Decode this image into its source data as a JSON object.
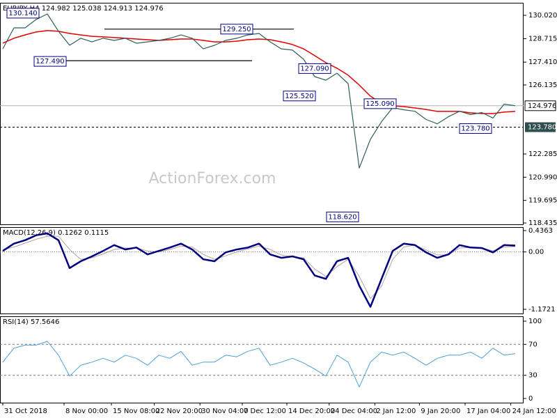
{
  "chart_data": [
    {
      "type": "line",
      "title": "EURJPY,H4 124.982 125.038 124.913 124.976",
      "watermark": "ActionForex.com",
      "x": [
        0,
        1,
        2,
        3,
        4,
        5,
        6,
        7,
        8,
        9,
        10,
        11,
        12,
        13,
        14,
        15,
        16,
        17,
        18,
        19,
        20,
        21,
        22,
        23,
        24,
        25,
        26,
        27,
        28,
        29,
        30,
        31,
        32,
        33,
        34,
        35,
        36,
        37,
        38,
        39,
        40,
        41,
        42,
        43,
        44,
        45,
        46
      ],
      "xlim": [
        -0.25,
        46.75
      ],
      "xticks": [
        {
          "value": 0,
          "label": "31 Oct 2018"
        },
        {
          "value": 5.5,
          "label": "8 Nov 00:00"
        },
        {
          "value": 9.75,
          "label": "15 Nov 08:00"
        },
        {
          "value": 13.6,
          "label": "22 Nov 20:00"
        },
        {
          "value": 17.7,
          "label": "30 Nov 04:00"
        },
        {
          "value": 21.5,
          "label": "7 Dec 12:00"
        },
        {
          "value": 25.5,
          "label": "14 Dec 20:00"
        },
        {
          "value": 29.3,
          "label": "24 Dec 04:00"
        },
        {
          "value": 33.4,
          "label": "2 Jan 12:00"
        },
        {
          "value": 37.4,
          "label": "9 Jan 20:00"
        },
        {
          "value": 41.5,
          "label": "17 Jan 04:00"
        },
        {
          "value": 45.6,
          "label": "24 Jan 12:00"
        }
      ],
      "ylim": [
        118.36,
        130.72
      ],
      "yticks": [
        {
          "value": 130.02,
          "label": "130.020"
        },
        128.715,
        {
          "value": 127.41,
          "label": "127.410"
        },
        126.135,
        122.285,
        {
          "value": 120.99,
          "label": "120.990"
        },
        119.695,
        118.435
      ],
      "series": [
        {
          "color": "#2f5f5a",
          "values": [
            128.15,
            129.32,
            129.32,
            129.79,
            130.1,
            129.13,
            128.35,
            128.74,
            128.54,
            128.74,
            128.62,
            128.74,
            128.46,
            128.54,
            128.62,
            128.74,
            128.93,
            128.74,
            128.15,
            128.35,
            128.62,
            128.74,
            128.93,
            129.01,
            128.54,
            128.15,
            128.08,
            127.57,
            126.6,
            126.4,
            126.79,
            126.21,
            121.5,
            123.1,
            124.09,
            124.87,
            124.75,
            124.67,
            124.21,
            123.97,
            124.36,
            124.67,
            124.48,
            124.6,
            124.29,
            125.06,
            124.98
          ]
        },
        {
          "color": "#e00000",
          "values": [
            128.47,
            128.74,
            128.93,
            129.09,
            129.17,
            129.13,
            129.01,
            128.93,
            128.85,
            128.82,
            128.78,
            128.74,
            128.7,
            128.66,
            128.62,
            128.66,
            128.7,
            128.7,
            128.62,
            128.54,
            128.54,
            128.58,
            128.66,
            128.7,
            128.66,
            128.54,
            128.39,
            128.15,
            127.77,
            127.38,
            127.07,
            126.68,
            126.13,
            125.51,
            125.12,
            124.97,
            124.93,
            124.85,
            124.77,
            124.66,
            124.66,
            124.66,
            124.58,
            124.54,
            124.54,
            124.62,
            124.66
          ]
        }
      ],
      "annotations": [
        {
          "value": 130.14,
          "label": "130.140"
        },
        {
          "value": 127.49,
          "label": "127.490"
        },
        {
          "value": 129.25,
          "label": "129.250"
        },
        {
          "value": 127.09,
          "label": "127.090"
        },
        {
          "value": 125.52,
          "label": "125.520"
        },
        {
          "value": 125.09,
          "label": "125.090"
        },
        {
          "value": 123.78,
          "label": "123.780"
        },
        {
          "value": 118.62,
          "label": "118.620"
        }
      ],
      "last": {
        "value": 124.976,
        "label": "124.976"
      }
    },
    {
      "type": "line",
      "title": "MACD(12,26,9) 0.1262 0.1115",
      "ylim": [
        -1.257,
        0.507
      ],
      "yticks": [
        0.4363,
        {
          "value": 0,
          "label": "0.00"
        },
        -1.1721
      ],
      "series": [
        {
          "color": "#000080",
          "values": [
            0.02,
            0.17,
            0.24,
            0.34,
            0.38,
            0.24,
            -0.33,
            -0.19,
            -0.09,
            0.02,
            0.14,
            0.05,
            0.09,
            -0.05,
            0.02,
            0.09,
            0.17,
            0.05,
            -0.15,
            -0.19,
            -0.01,
            0.05,
            0.09,
            0.17,
            -0.05,
            -0.12,
            -0.09,
            -0.15,
            -0.48,
            -0.55,
            -0.19,
            -0.12,
            -0.69,
            -1.12,
            -0.55,
            0.02,
            0.17,
            0.14,
            -0.01,
            -0.12,
            -0.05,
            0.14,
            0.09,
            0.08,
            -0.01,
            0.14,
            0.13
          ]
        },
        {
          "color": "#b8a0a0",
          "values": [
            0.05,
            0.1,
            0.18,
            0.26,
            0.32,
            0.32,
            0.05,
            -0.15,
            -0.12,
            -0.04,
            0.05,
            0.08,
            0.08,
            0.02,
            0.0,
            0.05,
            0.12,
            0.1,
            -0.05,
            -0.15,
            -0.08,
            0.0,
            0.06,
            0.12,
            0.05,
            -0.06,
            -0.1,
            -0.12,
            -0.35,
            -0.5,
            -0.3,
            -0.15,
            -0.5,
            -0.95,
            -0.7,
            -0.15,
            0.1,
            0.14,
            0.04,
            -0.06,
            -0.06,
            0.08,
            0.09,
            0.08,
            0.02,
            0.1,
            0.11
          ]
        }
      ]
    },
    {
      "type": "line",
      "title": "RSI(14) 57.5646",
      "ylim": [
        -5.4,
        106.3
      ],
      "yticks": [
        100,
        70,
        30,
        0
      ],
      "series": [
        {
          "color": "#4a9fd8",
          "values": [
            47,
            65,
            69,
            69,
            74,
            56,
            29,
            43,
            47,
            52,
            47,
            56,
            52,
            43,
            56,
            52,
            61,
            43,
            47,
            47,
            56,
            54,
            61,
            65,
            43,
            47,
            52,
            46,
            38,
            29,
            56,
            47,
            15,
            47,
            60,
            56,
            60,
            52,
            43,
            52,
            56,
            56,
            60,
            52,
            65,
            56,
            58
          ]
        }
      ]
    }
  ]
}
